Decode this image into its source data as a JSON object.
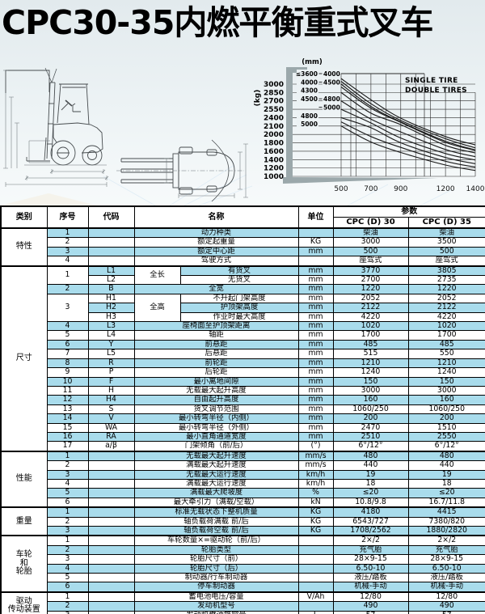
{
  "title": "CPC30-35内燃平衡重式叉车",
  "figures": {
    "side_view": "forklift-side-view-drawing",
    "top_view": "forklift-top-view-drawing"
  },
  "chart_data": {
    "type": "line",
    "title": "",
    "ylabel": "(kg)",
    "mast_unit_label": "(mm)",
    "legend": [
      "SINGLE TIRE",
      "DOUBLE TIRES"
    ],
    "legend_position": "top-right",
    "grid": true,
    "x_ticks": [
      500,
      700,
      900,
      1200,
      1400
    ],
    "x_gridlines": [
      500,
      600,
      700,
      800,
      900,
      1000,
      1100,
      1200,
      1300,
      1400
    ],
    "x_range_mm": [
      500,
      1400
    ],
    "y_ticks_top_to_bottom": [
      3000,
      2850,
      2700,
      2550,
      2400,
      2100,
      2000,
      1800,
      1600,
      1400,
      1200,
      1000
    ],
    "mast_label_rows": [
      [
        "≤3600",
        "4000"
      ],
      [
        "4000",
        "4500"
      ],
      [
        "4300",
        ""
      ],
      [
        "4500",
        "4800"
      ],
      [
        "",
        "5000"
      ],
      [
        "4800",
        ""
      ],
      [
        "5000",
        ""
      ]
    ],
    "series_x": [
      500,
      700,
      900,
      1200,
      1400
    ],
    "series": [
      {
        "name": "single-tire mast ≤3600",
        "y": [
          3050,
          2650,
          2300,
          1900,
          1680
        ]
      },
      {
        "name": "single-tire mast 4000",
        "y": [
          3000,
          2600,
          2250,
          1840,
          1630
        ]
      },
      {
        "name": "single-tire mast 4300",
        "y": [
          2850,
          2480,
          2150,
          1740,
          1560
        ]
      },
      {
        "name": "single-tire mast 4500",
        "y": [
          2700,
          2350,
          2030,
          1640,
          1470
        ]
      },
      {
        "name": "single-tire mast 4800",
        "y": [
          2400,
          2080,
          1800,
          1450,
          1300
        ]
      },
      {
        "name": "single-tire mast 5000",
        "y": [
          2100,
          1820,
          1570,
          1270,
          1140
        ]
      },
      {
        "name": "double-tires mast 4000",
        "y": [
          3100,
          2720,
          2380,
          1950,
          1750
        ]
      },
      {
        "name": "double-tires mast 4500",
        "y": [
          2950,
          2570,
          2230,
          1810,
          1620
        ]
      },
      {
        "name": "double-tires mast 4800",
        "y": [
          2550,
          2210,
          1915,
          1545,
          1390
        ]
      },
      {
        "name": "double-tires mast 5000",
        "y": [
          2250,
          1950,
          1690,
          1360,
          1220
        ]
      }
    ]
  },
  "colors": {
    "stripe_blue": "#a9dcec",
    "axis_gray": "#9ba8ab",
    "line_black": "#1a1a1a"
  },
  "table": {
    "columns": [
      "类别",
      "序号",
      "代码",
      "名称",
      "单位"
    ],
    "param_header": "参数",
    "models": [
      "CPC (D) 30",
      "CPC (D) 35"
    ],
    "sections": [
      {
        "category": "特性",
        "rows": [
          {
            "seq": "1",
            "code": "",
            "name": "动力种类",
            "unit": "",
            "v": [
              "柴油",
              "柴油"
            ],
            "shade": true
          },
          {
            "seq": "2",
            "code": "",
            "name": "额定起重量",
            "unit": "KG",
            "v": [
              "3000",
              "3500"
            ],
            "shade": false
          },
          {
            "seq": "3",
            "code": "",
            "name": "额定中心距",
            "unit": "mm",
            "v": [
              "500",
              "500"
            ],
            "shade": true
          },
          {
            "seq": "4",
            "code": "",
            "name": "驾驶方式",
            "unit": "",
            "v": [
              "座驾式",
              "座驾式"
            ],
            "shade": false
          }
        ]
      },
      {
        "category": "尺寸",
        "rows": [
          {
            "seq": "1",
            "seqspan": 2,
            "code": "L1",
            "group": "全长",
            "groupspan": 2,
            "name": "有货叉",
            "unit": "mm",
            "v": [
              "3770",
              "3805"
            ],
            "shade": true
          },
          {
            "code": "L2",
            "name": "无货叉",
            "unit": "mm",
            "v": [
              "2700",
              "2735"
            ],
            "shade": false
          },
          {
            "seq": "2",
            "code": "B",
            "name": "全宽",
            "unit": "mm",
            "v": [
              "1220",
              "1220"
            ],
            "shade": true
          },
          {
            "seq": "3",
            "seqspan": 3,
            "code": "H1",
            "group": "全高",
            "groupspan": 3,
            "name": "不升起门架高度",
            "unit": "mm",
            "v": [
              "2052",
              "2052"
            ],
            "shade": false
          },
          {
            "code": "H2",
            "name": "护顶架高度",
            "unit": "mm",
            "v": [
              "2122",
              "2122"
            ],
            "shade": true
          },
          {
            "code": "H3",
            "name": "作业时最大高度",
            "unit": "mm",
            "v": [
              "4220",
              "4220"
            ],
            "shade": false
          },
          {
            "seq": "4",
            "code": "L3",
            "name": "座椅面至护顶架距离",
            "unit": "mm",
            "v": [
              "1020",
              "1020"
            ],
            "shade": true
          },
          {
            "seq": "5",
            "code": "L4",
            "name": "轴距",
            "unit": "mm",
            "v": [
              "1700",
              "1700"
            ],
            "shade": false
          },
          {
            "seq": "6",
            "code": "Y",
            "name": "前悬距",
            "unit": "mm",
            "v": [
              "485",
              "485"
            ],
            "shade": true
          },
          {
            "seq": "7",
            "code": "L5",
            "name": "后悬距",
            "unit": "mm",
            "v": [
              "515",
              "550"
            ],
            "shade": false
          },
          {
            "seq": "8",
            "code": "R",
            "name": "前轮距",
            "unit": "mm",
            "v": [
              "1210",
              "1210"
            ],
            "shade": true
          },
          {
            "seq": "9",
            "code": "P",
            "name": "后轮距",
            "unit": "mm",
            "v": [
              "1240",
              "1240"
            ],
            "shade": false
          },
          {
            "seq": "10",
            "code": "F",
            "name": "最小离地间隙",
            "unit": "mm",
            "v": [
              "150",
              "150"
            ],
            "shade": true
          },
          {
            "seq": "11",
            "code": "H",
            "name": "无载最大起升高度",
            "unit": "mm",
            "v": [
              "3000",
              "3000"
            ],
            "shade": false
          },
          {
            "seq": "12",
            "code": "H4",
            "name": "自由起升高度",
            "unit": "mm",
            "v": [
              "160",
              "160"
            ],
            "shade": true
          },
          {
            "seq": "13",
            "code": "S",
            "name": "货叉调节范围",
            "unit": "mm",
            "v": [
              "1060/250",
              "1060/250"
            ],
            "shade": false
          },
          {
            "seq": "14",
            "code": "V",
            "name": "最小转弯半径（内侧）",
            "unit": "mm",
            "v": [
              "200",
              "200"
            ],
            "shade": true
          },
          {
            "seq": "15",
            "code": "WA",
            "name": "最小转弯半径（外侧）",
            "unit": "mm",
            "v": [
              "2470",
              "1510"
            ],
            "shade": false
          },
          {
            "seq": "16",
            "code": "RA",
            "name": "最小直角通道宽度",
            "unit": "mm",
            "v": [
              "2510",
              "2550"
            ],
            "shade": true
          },
          {
            "seq": "17",
            "code": "a/β",
            "name": "门架倾角（前/后）",
            "unit": "(°)",
            "v": [
              "6°/12°",
              "6°/12°"
            ],
            "shade": false
          }
        ]
      },
      {
        "category": "性能",
        "rows": [
          {
            "seq": "1",
            "code": "",
            "name": "无载最大起升速度",
            "unit": "mm/s",
            "v": [
              "480",
              "480"
            ],
            "shade": true
          },
          {
            "seq": "2",
            "code": "",
            "name": "满载最大起升速度",
            "unit": "mm/s",
            "v": [
              "440",
              "440"
            ],
            "shade": false
          },
          {
            "seq": "3",
            "code": "",
            "name": "无载最大运行速度",
            "unit": "km/h",
            "v": [
              "19",
              "19"
            ],
            "shade": true
          },
          {
            "seq": "4",
            "code": "",
            "name": "满载最大运行速度",
            "unit": "km/h",
            "v": [
              "18",
              "18"
            ],
            "shade": false
          },
          {
            "seq": "5",
            "code": "",
            "name": "满载最大爬坡度",
            "unit": "%",
            "v": [
              "≤20",
              "≤20"
            ],
            "shade": true
          },
          {
            "seq": "6",
            "code": "",
            "name": "最大牵引力（满载/空载）",
            "unit": "kN",
            "v": [
              "10.8/9.8",
              "16.7/11.8"
            ],
            "shade": false
          }
        ]
      },
      {
        "category": "重量",
        "rows": [
          {
            "seq": "1",
            "code": "",
            "name": "标准无载状态下整机质量",
            "unit": "KG",
            "v": [
              "4180",
              "4415"
            ],
            "shade": true
          },
          {
            "seq": "2",
            "code": "",
            "name": "轴负载荷满载 前/后",
            "unit": "KG",
            "v": [
              "6543/727",
              "7380/820"
            ],
            "shade": false
          },
          {
            "seq": "3",
            "code": "",
            "name": "轴负载荷空载 前/后",
            "unit": "KG",
            "v": [
              "1708/2562",
              "1880/2820"
            ],
            "shade": true
          }
        ]
      },
      {
        "category": "车轮\n和\n轮胎",
        "rows": [
          {
            "seq": "1",
            "code": "",
            "name": "车轮数量×=驱动轮（前/后）",
            "unit": "",
            "v": [
              "2×/2",
              "2×/2"
            ],
            "shade": false
          },
          {
            "seq": "2",
            "code": "",
            "name": "轮胎类型",
            "unit": "",
            "v": [
              "充气胎",
              "充气胎"
            ],
            "shade": true
          },
          {
            "seq": "3",
            "code": "",
            "name": "轮胎尺寸（前）",
            "unit": "",
            "v": [
              "28×9-15",
              "28×9-15"
            ],
            "shade": false
          },
          {
            "seq": "4",
            "code": "",
            "name": "轮胎尺寸（后）",
            "unit": "",
            "v": [
              "6.50-10",
              "6.50-10"
            ],
            "shade": true
          },
          {
            "seq": "5",
            "code": "",
            "name": "制动器/行车制动器",
            "unit": "",
            "v": [
              "液压/踏板",
              "液压/踏板"
            ],
            "shade": false
          },
          {
            "seq": "6",
            "code": "",
            "name": "停车制动器",
            "unit": "",
            "v": [
              "机械-手动",
              "机械-手动"
            ],
            "shade": true
          }
        ]
      },
      {
        "category": "驱动\n传动装置",
        "rows": [
          {
            "seq": "1",
            "code": "",
            "name": "蓄电池电压/容量",
            "unit": "V/Ah",
            "v": [
              "12/80",
              "12/80"
            ],
            "shade": false
          },
          {
            "seq": "2",
            "code": "",
            "name": "发动机型号",
            "unit": "",
            "v": [
              "490",
              "490"
            ],
            "shade": true
          },
          {
            "seq": "3",
            "code": "",
            "name": "发动机燃油箱容量",
            "unit": "L",
            "v": [
              "57",
              "57"
            ],
            "shade": false
          }
        ]
      }
    ]
  }
}
